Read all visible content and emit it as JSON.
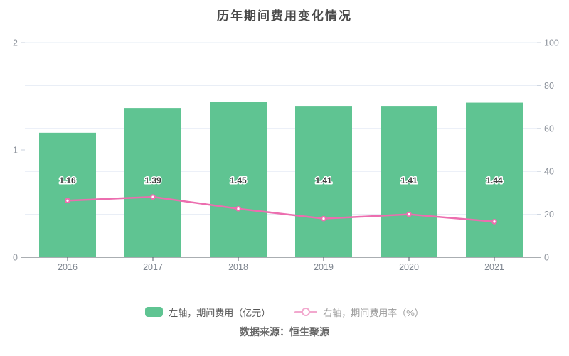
{
  "title": "历年期间费用变化情况",
  "source": "数据来源：恒生聚源",
  "colors": {
    "bar": "#5FC492",
    "line": "#EC6EAF",
    "point_fill": "#FFFFFF",
    "legend_line_marker": "#F2A8CE",
    "grid": "#E6ECF5",
    "axis": "#565D66",
    "minor_tick": "#C9D2DE"
  },
  "chart_data": {
    "type": "bar+line",
    "title": "历年期间费用变化情况",
    "categories": [
      "2016",
      "2017",
      "2018",
      "2019",
      "2020",
      "2021"
    ],
    "series": [
      {
        "name": "左轴，期间费用（亿元）",
        "type": "bar",
        "axis": "left",
        "values": [
          1.16,
          1.39,
          1.45,
          1.41,
          1.41,
          1.44
        ],
        "data_labels": [
          "1.16",
          "1.39",
          "1.45",
          "1.41",
          "1.41",
          "1.44"
        ]
      },
      {
        "name": "右轴，期间费用率（%）",
        "type": "line",
        "axis": "right",
        "values": [
          26.4,
          28.1,
          22.6,
          18.0,
          20.0,
          16.6
        ]
      }
    ],
    "left_axis": {
      "min": 0,
      "max": 2,
      "tick_labels": [
        "0",
        "1",
        "2"
      ]
    },
    "right_axis": {
      "min": 0,
      "max": 100,
      "tick_labels": [
        "0",
        "20",
        "40",
        "60",
        "80",
        "100"
      ]
    },
    "grid": true,
    "legend_position": "bottom"
  }
}
